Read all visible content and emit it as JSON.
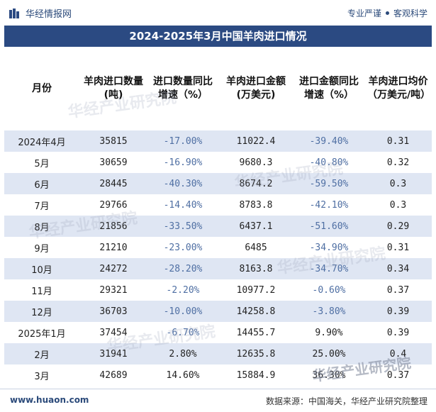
{
  "header": {
    "logo_text": "华经情报网",
    "slogan_left": "专业严谨",
    "slogan_right": "客观科学"
  },
  "footer": {
    "website": "www.huaon.com",
    "source": "数据来源：中国海关，华经产业研究院整理"
  },
  "watermark": "华经产业研究院",
  "colors": {
    "title_bg": "#2b4a82",
    "stripe": "#dfe6f3",
    "pct_text": "#4f6fa3"
  },
  "chart_data": {
    "type": "table",
    "title": "2024-2025年3月中国羊肉进口情况",
    "columns": [
      "月份",
      "羊肉进口数量(吨)",
      "进口数量同比增速（%）",
      "羊肉进口金额(万美元)",
      "进口金额同比增速（%）",
      "羊肉进口均价（万美元/吨）"
    ],
    "rows": [
      [
        "2024年4月",
        "35815",
        "-17.00%",
        "11022.4",
        "-39.40%",
        "0.31"
      ],
      [
        "5月",
        "30659",
        "-16.90%",
        "9680.3",
        "-40.80%",
        "0.32"
      ],
      [
        "6月",
        "28445",
        "-40.30%",
        "8674.2",
        "-59.50%",
        "0.3"
      ],
      [
        "7月",
        "29766",
        "-14.40%",
        "8783.8",
        "-42.10%",
        "0.3"
      ],
      [
        "8月",
        "21856",
        "-33.50%",
        "6437.1",
        "-51.60%",
        "0.29"
      ],
      [
        "9月",
        "21210",
        "-23.00%",
        "6485",
        "-34.90%",
        "0.31"
      ],
      [
        "10月",
        "24272",
        "-28.20%",
        "8163.8",
        "-34.70%",
        "0.34"
      ],
      [
        "11月",
        "29321",
        "-2.20%",
        "10977.2",
        "-0.60%",
        "0.37"
      ],
      [
        "12月",
        "36703",
        "-10.00%",
        "14258.8",
        "-3.80%",
        "0.39"
      ],
      [
        "2025年1月",
        "37454",
        "-6.70%",
        "14455.7",
        "9.90%",
        "0.39"
      ],
      [
        "2月",
        "31941",
        "2.80%",
        "12635.8",
        "25.00%",
        "0.4"
      ],
      [
        "3月",
        "42689",
        "14.60%",
        "15884.9",
        "36.30%",
        "0.37"
      ]
    ]
  }
}
